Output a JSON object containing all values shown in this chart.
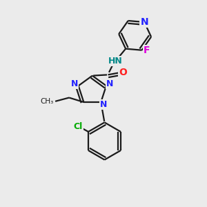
{
  "background_color": "#ebebeb",
  "bond_color": "#1a1a1a",
  "bond_width": 1.6,
  "atom_colors": {
    "N": "#2222ff",
    "O": "#ff2222",
    "F": "#dd00dd",
    "Cl": "#00aa00",
    "C": "#1a1a1a",
    "NH": "#008888"
  },
  "font_size": 9,
  "fig_size": [
    3.0,
    3.0
  ],
  "dpi": 100
}
